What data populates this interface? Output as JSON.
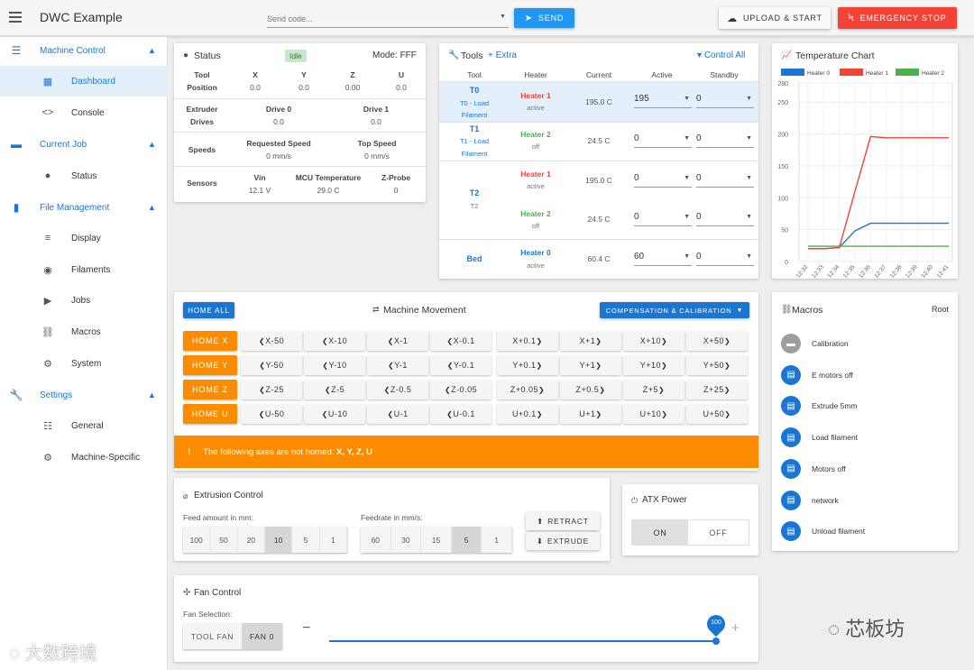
{
  "app": {
    "title": "DWC Example"
  },
  "topbar": {
    "send_placeholder": "Send code...",
    "send_label": "SEND",
    "upload_label": "UPLOAD & START",
    "emergency_label": "EMERGENCY STOP"
  },
  "sidebar": {
    "groups": [
      {
        "label": "Machine Control",
        "items": [
          {
            "label": "Dashboard"
          },
          {
            "label": "Console"
          }
        ]
      },
      {
        "label": "Current Job",
        "items": [
          {
            "label": "Status"
          }
        ]
      },
      {
        "label": "File Management",
        "items": [
          {
            "label": "Display"
          },
          {
            "label": "Filaments"
          },
          {
            "label": "Jobs"
          },
          {
            "label": "Macros"
          },
          {
            "label": "System"
          }
        ]
      },
      {
        "label": "Settings",
        "items": [
          {
            "label": "General"
          },
          {
            "label": "Machine-Specific"
          }
        ]
      }
    ]
  },
  "status": {
    "title": "Status",
    "badge": "Idle",
    "mode": "Mode: FFF",
    "tool_label": "Tool",
    "position_label": "Position",
    "axes": [
      {
        "name": "X",
        "value": "0.0"
      },
      {
        "name": "Y",
        "value": "0.0"
      },
      {
        "name": "Z",
        "value": "0.00"
      },
      {
        "name": "U",
        "value": "0.0"
      }
    ],
    "extruder_label": "Extruder",
    "drives_label": "Drives",
    "drives": [
      {
        "name": "Drive 0",
        "value": "0.0"
      },
      {
        "name": "Drive 1",
        "value": "0.0"
      }
    ],
    "speeds_label": "Speeds",
    "requested_label": "Requested Speed",
    "requested_value": "0 mm/s",
    "top_label": "Top Speed",
    "top_value": "0 mm/s",
    "sensors_label": "Sensors",
    "vin_label": "Vin",
    "vin_value": "12.1 V",
    "mcu_label": "MCU Temperature",
    "mcu_value": "29.0 C",
    "zprobe_label": "Z-Probe",
    "zprobe_value": "0"
  },
  "tools": {
    "title": "Tools",
    "extra": "Extra",
    "control_all": "Control All",
    "headers": {
      "tool": "Tool",
      "heater": "Heater",
      "current": "Current",
      "active": "Active",
      "standby": "Standby"
    },
    "rows": [
      {
        "tool": "T0",
        "sub": "T0 - Load",
        "sub2": "Filament",
        "heater": "Heater 1",
        "state": "active",
        "current": "195.0 C",
        "active": "195",
        "standby": "0"
      },
      {
        "tool": "T1",
        "sub": "T1 - Load",
        "sub2": "Filament",
        "heater": "Heater 2",
        "state": "off",
        "current": "24.5 C",
        "active": "0",
        "standby": "0"
      },
      {
        "tool": "T2",
        "sub": "T2",
        "sub2": "",
        "heater": "Heater 1",
        "state": "active",
        "current": "195.0 C",
        "active": "0",
        "standby": "0"
      },
      {
        "tool": "",
        "sub": "",
        "sub2": "",
        "heater": "Heater 2",
        "state": "off",
        "current": "24.5 C",
        "active": "0",
        "standby": "0"
      },
      {
        "tool": "Bed",
        "sub": "",
        "sub2": "",
        "heater": "Heater 0",
        "state": "active",
        "current": "60.4 C",
        "active": "60",
        "standby": "0"
      }
    ]
  },
  "temp_chart": {
    "title": "Temperature Chart"
  },
  "chart_data": {
    "type": "line",
    "title": "Temperature Chart",
    "x": [
      "12:32",
      "12:33",
      "12:34",
      "12:35",
      "12:36",
      "12:37",
      "12:38",
      "12:39",
      "12:40",
      "12:41"
    ],
    "ylim": [
      0,
      280
    ],
    "yticks": [
      0,
      50,
      100,
      150,
      200,
      250,
      280
    ],
    "series": [
      {
        "name": "Heater 0",
        "color": "#1976d2",
        "values": [
          20,
          20,
          22,
          48,
          60,
          60,
          60,
          60,
          60,
          60
        ]
      },
      {
        "name": "Heater 1",
        "color": "#f44336",
        "values": [
          20,
          20,
          22,
          110,
          196,
          194,
          194,
          194,
          194,
          194
        ]
      },
      {
        "name": "Heater 2",
        "color": "#4caf50",
        "values": [
          24,
          24,
          24,
          24,
          24,
          24,
          24,
          24,
          24,
          24
        ]
      }
    ]
  },
  "movement": {
    "home_all": "HOME ALL",
    "title": "Machine Movement",
    "comp_label": "COMPENSATION & CALIBRATION",
    "rows": [
      {
        "home": "HOME X",
        "buttons": [
          "X-50",
          "X-10",
          "X-1",
          "X-0.1",
          "X+0.1",
          "X+1",
          "X+10",
          "X+50"
        ]
      },
      {
        "home": "HOME Y",
        "buttons": [
          "Y-50",
          "Y-10",
          "Y-1",
          "Y-0.1",
          "Y+0.1",
          "Y+1",
          "Y+10",
          "Y+50"
        ]
      },
      {
        "home": "HOME Z",
        "buttons": [
          "Z-25",
          "Z-5",
          "Z-0.5",
          "Z-0.05",
          "Z+0.05",
          "Z+0.5",
          "Z+5",
          "Z+25"
        ]
      },
      {
        "home": "HOME U",
        "buttons": [
          "U-50",
          "U-10",
          "U-1",
          "U-0.1",
          "U+0.1",
          "U+1",
          "U+10",
          "U+50"
        ]
      }
    ],
    "warning_prefix": "The following axes are not homed:",
    "warning_axes": "X, Y, Z, U"
  },
  "macros": {
    "title": "Macros",
    "root": "Root",
    "items": [
      "Calibration",
      "E motors off",
      "Extrude 5mm",
      "Load filament",
      "Motors off",
      "network",
      "Unload filament"
    ]
  },
  "extrusion": {
    "title": "Extrusion Control",
    "feed_label": "Feed amount in mm:",
    "feed": [
      "100",
      "50",
      "20",
      "10",
      "5",
      "1"
    ],
    "feedrate_label": "Feedrate in mm/s:",
    "feedrate": [
      "60",
      "30",
      "15",
      "5",
      "1"
    ],
    "retract": "RETRACT",
    "extrude": "EXTRUDE"
  },
  "atx": {
    "title": "ATX Power",
    "on": "ON",
    "off": "OFF"
  },
  "fan": {
    "title": "Fan Control",
    "selection_label": "Fan Selection:",
    "tool_fan": "TOOL FAN",
    "fan0": "FAN 0",
    "value": "100",
    "fill": 1.0
  },
  "watermarks": {
    "left": "大数跨境",
    "right": "芯板坊"
  }
}
